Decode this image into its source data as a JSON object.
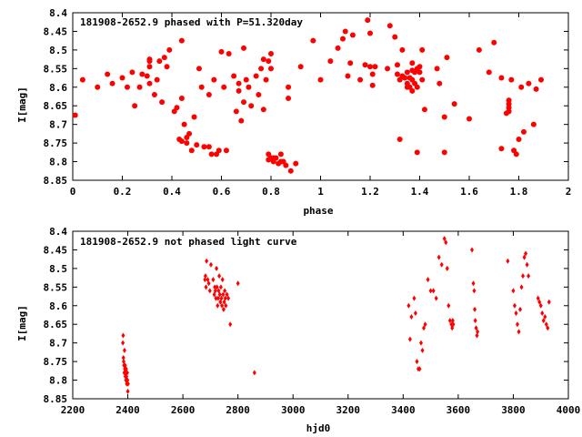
{
  "chart_data": [
    {
      "type": "scatter",
      "title": "181908-2652.9 phased with P=51.320day",
      "xlabel": "phase",
      "ylabel": "I[mag]",
      "xlim": [
        0,
        2
      ],
      "ylim": [
        8.85,
        8.4
      ],
      "y_inverted": true,
      "xticks": [
        "0",
        "0.2",
        "0.4",
        "0.6",
        "0.8",
        "1",
        "1.2",
        "1.4",
        "1.6",
        "1.8",
        "2"
      ],
      "xtick_values": [
        0,
        0.2,
        0.4,
        0.6,
        0.8,
        1.0,
        1.2,
        1.4,
        1.6,
        1.8,
        2.0
      ],
      "yticks": [
        "8.4",
        "8.45",
        "8.5",
        "8.55",
        "8.6",
        "8.65",
        "8.7",
        "8.75",
        "8.8",
        "8.85"
      ],
      "ytick_values": [
        8.4,
        8.45,
        8.5,
        8.55,
        8.6,
        8.65,
        8.7,
        8.75,
        8.8,
        8.85
      ],
      "marker": "filled-circle",
      "color": "#ff0000",
      "grid": false,
      "points": [
        [
          0.01,
          8.675
        ],
        [
          0.04,
          8.58
        ],
        [
          0.1,
          8.6
        ],
        [
          0.14,
          8.565
        ],
        [
          0.16,
          8.59
        ],
        [
          0.2,
          8.575
        ],
        [
          0.22,
          8.6
        ],
        [
          0.24,
          8.56
        ],
        [
          0.25,
          8.65
        ],
        [
          0.27,
          8.6
        ],
        [
          0.28,
          8.565
        ],
        [
          0.3,
          8.57
        ],
        [
          0.31,
          8.545
        ],
        [
          0.31,
          8.59
        ],
        [
          0.31,
          8.525
        ],
        [
          0.31,
          8.53
        ],
        [
          0.33,
          8.62
        ],
        [
          0.34,
          8.58
        ],
        [
          0.35,
          8.53
        ],
        [
          0.36,
          8.64
        ],
        [
          0.37,
          8.52
        ],
        [
          0.38,
          8.545
        ],
        [
          0.39,
          8.5
        ],
        [
          0.41,
          8.665
        ],
        [
          0.42,
          8.655
        ],
        [
          0.43,
          8.74
        ],
        [
          0.44,
          8.475
        ],
        [
          0.44,
          8.63
        ],
        [
          0.44,
          8.745
        ],
        [
          0.45,
          8.7
        ],
        [
          0.46,
          8.75
        ],
        [
          0.46,
          8.735
        ],
        [
          0.47,
          8.725
        ],
        [
          0.48,
          8.77
        ],
        [
          0.49,
          8.68
        ],
        [
          0.5,
          8.755
        ],
        [
          0.51,
          8.55
        ],
        [
          0.52,
          8.6
        ],
        [
          0.53,
          8.76
        ],
        [
          0.55,
          8.76
        ],
        [
          0.55,
          8.62
        ],
        [
          0.56,
          8.78
        ],
        [
          0.57,
          8.58
        ],
        [
          0.58,
          8.78
        ],
        [
          0.59,
          8.77
        ],
        [
          0.6,
          8.505
        ],
        [
          0.61,
          8.6
        ],
        [
          0.62,
          8.77
        ],
        [
          0.63,
          8.51
        ],
        [
          0.65,
          8.57
        ],
        [
          0.66,
          8.665
        ],
        [
          0.67,
          8.59
        ],
        [
          0.67,
          8.61
        ],
        [
          0.68,
          8.69
        ],
        [
          0.69,
          8.64
        ],
        [
          0.69,
          8.495
        ],
        [
          0.7,
          8.58
        ],
        [
          0.71,
          8.6
        ],
        [
          0.72,
          8.65
        ],
        [
          0.74,
          8.57
        ],
        [
          0.75,
          8.62
        ],
        [
          0.76,
          8.55
        ],
        [
          0.77,
          8.66
        ],
        [
          0.77,
          8.525
        ],
        [
          0.78,
          8.58
        ],
        [
          0.79,
          8.53
        ],
        [
          0.79,
          8.78
        ],
        [
          0.79,
          8.795
        ],
        [
          0.8,
          8.51
        ],
        [
          0.8,
          8.55
        ],
        [
          0.8,
          8.79
        ],
        [
          0.81,
          8.79
        ],
        [
          0.81,
          8.8
        ],
        [
          0.82,
          8.79
        ],
        [
          0.83,
          8.805
        ],
        [
          0.84,
          8.78
        ],
        [
          0.84,
          8.8
        ],
        [
          0.85,
          8.8
        ],
        [
          0.86,
          8.81
        ],
        [
          0.87,
          8.6
        ],
        [
          0.87,
          8.63
        ],
        [
          0.88,
          8.825
        ],
        [
          0.9,
          8.805
        ],
        [
          0.92,
          8.545
        ],
        [
          0.97,
          8.475
        ],
        [
          1.0,
          8.58
        ],
        [
          1.04,
          8.53
        ],
        [
          1.07,
          8.495
        ],
        [
          1.09,
          8.47
        ],
        [
          1.1,
          8.45
        ],
        [
          1.11,
          8.57
        ],
        [
          1.12,
          8.535
        ],
        [
          1.13,
          8.46
        ],
        [
          1.16,
          8.58
        ],
        [
          1.18,
          8.54
        ],
        [
          1.19,
          8.42
        ],
        [
          1.2,
          8.545
        ],
        [
          1.2,
          8.455
        ],
        [
          1.21,
          8.595
        ],
        [
          1.21,
          8.565
        ],
        [
          1.22,
          8.545
        ],
        [
          1.27,
          8.55
        ],
        [
          1.28,
          8.435
        ],
        [
          1.3,
          8.465
        ],
        [
          1.31,
          8.54
        ],
        [
          1.31,
          8.565
        ],
        [
          1.32,
          8.74
        ],
        [
          1.32,
          8.58
        ],
        [
          1.33,
          8.57
        ],
        [
          1.33,
          8.5
        ],
        [
          1.34,
          8.575
        ],
        [
          1.35,
          8.59
        ],
        [
          1.35,
          8.6
        ],
        [
          1.35,
          8.56
        ],
        [
          1.36,
          8.575
        ],
        [
          1.36,
          8.6
        ],
        [
          1.37,
          8.555
        ],
        [
          1.37,
          8.58
        ],
        [
          1.37,
          8.535
        ],
        [
          1.37,
          8.61
        ],
        [
          1.38,
          8.56
        ],
        [
          1.38,
          8.59
        ],
        [
          1.39,
          8.55
        ],
        [
          1.39,
          8.775
        ],
        [
          1.39,
          8.6
        ],
        [
          1.4,
          8.56
        ],
        [
          1.4,
          8.545
        ],
        [
          1.41,
          8.5
        ],
        [
          1.41,
          8.58
        ],
        [
          1.42,
          8.66
        ],
        [
          1.47,
          8.55
        ],
        [
          1.48,
          8.59
        ],
        [
          1.5,
          8.68
        ],
        [
          1.51,
          8.52
        ],
        [
          1.54,
          8.645
        ],
        [
          1.5,
          8.775
        ],
        [
          1.6,
          8.685
        ],
        [
          1.64,
          8.5
        ],
        [
          1.68,
          8.56
        ],
        [
          1.7,
          8.48
        ],
        [
          1.73,
          8.765
        ],
        [
          1.73,
          8.575
        ],
        [
          1.75,
          8.67
        ],
        [
          1.76,
          8.635
        ],
        [
          1.76,
          8.645
        ],
        [
          1.76,
          8.655
        ],
        [
          1.76,
          8.665
        ],
        [
          1.77,
          8.58
        ],
        [
          1.78,
          8.77
        ],
        [
          1.79,
          8.78
        ],
        [
          1.8,
          8.74
        ],
        [
          1.81,
          8.6
        ],
        [
          1.82,
          8.72
        ],
        [
          1.84,
          8.59
        ],
        [
          1.86,
          8.7
        ],
        [
          1.87,
          8.605
        ],
        [
          1.89,
          8.58
        ]
      ],
      "legend_position": "top-left"
    },
    {
      "type": "scatter",
      "title": "181908-2652.9 not phased light curve",
      "xlabel": "hjd0",
      "ylabel": "I[mag]",
      "xlim": [
        2200,
        4000
      ],
      "ylim": [
        8.85,
        8.4
      ],
      "y_inverted": true,
      "xticks": [
        "2200",
        "2400",
        "2600",
        "2800",
        "3000",
        "3200",
        "3400",
        "3600",
        "3800",
        "4000"
      ],
      "xtick_values": [
        2200,
        2400,
        2600,
        2800,
        3000,
        3200,
        3400,
        3600,
        3800,
        4000
      ],
      "yticks": [
        "8.4",
        "8.45",
        "8.5",
        "8.55",
        "8.6",
        "8.65",
        "8.7",
        "8.75",
        "8.8",
        "8.85"
      ],
      "ytick_values": [
        8.4,
        8.45,
        8.5,
        8.55,
        8.6,
        8.65,
        8.7,
        8.75,
        8.8,
        8.85
      ],
      "marker": "small-diamond",
      "color": "#ff0000",
      "grid": false,
      "points": [
        [
          2382,
          8.7
        ],
        [
          2383,
          8.68
        ],
        [
          2384,
          8.74
        ],
        [
          2385,
          8.75
        ],
        [
          2386,
          8.76
        ],
        [
          2387,
          8.78
        ],
        [
          2388,
          8.72
        ],
        [
          2389,
          8.77
        ],
        [
          2390,
          8.76
        ],
        [
          2391,
          8.79
        ],
        [
          2392,
          8.78
        ],
        [
          2393,
          8.8
        ],
        [
          2394,
          8.77
        ],
        [
          2395,
          8.79
        ],
        [
          2396,
          8.81
        ],
        [
          2397,
          8.8
        ],
        [
          2398,
          8.78
        ],
        [
          2399,
          8.8
        ],
        [
          2400,
          8.83
        ],
        [
          2401,
          8.81
        ],
        [
          2680,
          8.53
        ],
        [
          2682,
          8.52
        ],
        [
          2684,
          8.55
        ],
        [
          2686,
          8.48
        ],
        [
          2690,
          8.53
        ],
        [
          2694,
          8.54
        ],
        [
          2698,
          8.56
        ],
        [
          2702,
          8.49
        ],
        [
          2710,
          8.53
        ],
        [
          2714,
          8.57
        ],
        [
          2716,
          8.55
        ],
        [
          2718,
          8.56
        ],
        [
          2720,
          8.58
        ],
        [
          2722,
          8.5
        ],
        [
          2724,
          8.55
        ],
        [
          2726,
          8.6
        ],
        [
          2728,
          8.58
        ],
        [
          2730,
          8.56
        ],
        [
          2732,
          8.52
        ],
        [
          2734,
          8.57
        ],
        [
          2736,
          8.59
        ],
        [
          2738,
          8.55
        ],
        [
          2740,
          8.58
        ],
        [
          2742,
          8.6
        ],
        [
          2744,
          8.53
        ],
        [
          2746,
          8.57
        ],
        [
          2748,
          8.61
        ],
        [
          2750,
          8.59
        ],
        [
          2752,
          8.56
        ],
        [
          2754,
          8.58
        ],
        [
          2756,
          8.6
        ],
        [
          2760,
          8.57
        ],
        [
          2765,
          8.58
        ],
        [
          2772,
          8.65
        ],
        [
          2800,
          8.54
        ],
        [
          2860,
          8.78
        ],
        [
          3420,
          8.6
        ],
        [
          3425,
          8.69
        ],
        [
          3430,
          8.63
        ],
        [
          3440,
          8.58
        ],
        [
          3445,
          8.62
        ],
        [
          3450,
          8.75
        ],
        [
          3455,
          8.77
        ],
        [
          3460,
          8.77
        ],
        [
          3465,
          8.7
        ],
        [
          3470,
          8.72
        ],
        [
          3475,
          8.66
        ],
        [
          3480,
          8.65
        ],
        [
          3490,
          8.53
        ],
        [
          3500,
          8.56
        ],
        [
          3510,
          8.56
        ],
        [
          3520,
          8.58
        ],
        [
          3530,
          8.47
        ],
        [
          3540,
          8.49
        ],
        [
          3550,
          8.42
        ],
        [
          3555,
          8.43
        ],
        [
          3560,
          8.5
        ],
        [
          3565,
          8.6
        ],
        [
          3570,
          8.64
        ],
        [
          3575,
          8.65
        ],
        [
          3578,
          8.66
        ],
        [
          3580,
          8.64
        ],
        [
          3582,
          8.65
        ],
        [
          3650,
          8.45
        ],
        [
          3655,
          8.54
        ],
        [
          3658,
          8.56
        ],
        [
          3660,
          8.61
        ],
        [
          3662,
          8.64
        ],
        [
          3665,
          8.66
        ],
        [
          3668,
          8.68
        ],
        [
          3670,
          8.67
        ],
        [
          3780,
          8.48
        ],
        [
          3800,
          8.56
        ],
        [
          3805,
          8.6
        ],
        [
          3810,
          8.62
        ],
        [
          3815,
          8.65
        ],
        [
          3820,
          8.67
        ],
        [
          3825,
          8.61
        ],
        [
          3830,
          8.55
        ],
        [
          3835,
          8.52
        ],
        [
          3840,
          8.47
        ],
        [
          3845,
          8.46
        ],
        [
          3850,
          8.49
        ],
        [
          3855,
          8.52
        ],
        [
          3890,
          8.58
        ],
        [
          3895,
          8.59
        ],
        [
          3900,
          8.6
        ],
        [
          3905,
          8.62
        ],
        [
          3910,
          8.64
        ],
        [
          3915,
          8.63
        ],
        [
          3920,
          8.65
        ],
        [
          3925,
          8.66
        ],
        [
          3930,
          8.59
        ]
      ],
      "legend_position": "top-left"
    }
  ]
}
